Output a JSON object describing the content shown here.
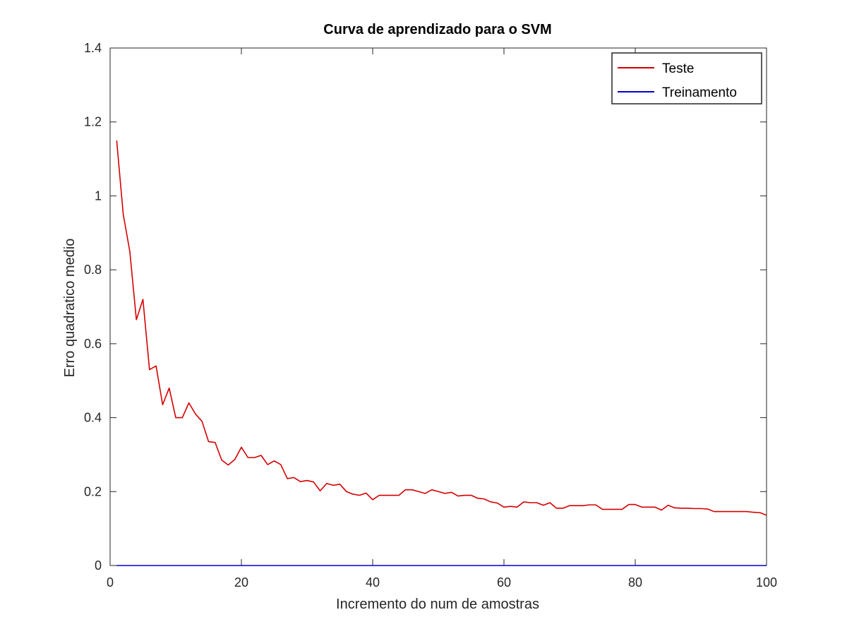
{
  "chart_data": {
    "type": "line",
    "title": "Curva de aprendizado para o SVM",
    "xlabel": "Incremento do num de amostras",
    "ylabel": "Erro quadratico medio",
    "xlim": [
      0,
      100
    ],
    "ylim": [
      0,
      1.4
    ],
    "xticks": [
      0,
      20,
      40,
      60,
      80,
      100
    ],
    "yticks": [
      0,
      0.2,
      0.4,
      0.6,
      0.8,
      1,
      1.2,
      1.4
    ],
    "xtick_labels": [
      "0",
      "20",
      "40",
      "60",
      "80",
      "100"
    ],
    "ytick_labels": [
      "0",
      "0.2",
      "0.4",
      "0.6",
      "0.8",
      "1",
      "1.2",
      "1.4"
    ],
    "grid": false,
    "legend_position": "top-right",
    "x": [
      1,
      2,
      3,
      4,
      5,
      6,
      7,
      8,
      9,
      10,
      11,
      12,
      13,
      14,
      15,
      16,
      17,
      18,
      19,
      20,
      21,
      22,
      23,
      24,
      25,
      26,
      27,
      28,
      29,
      30,
      31,
      32,
      33,
      34,
      35,
      36,
      37,
      38,
      39,
      40,
      41,
      42,
      43,
      44,
      45,
      46,
      47,
      48,
      49,
      50,
      51,
      52,
      53,
      54,
      55,
      56,
      57,
      58,
      59,
      60,
      61,
      62,
      63,
      64,
      65,
      66,
      67,
      68,
      69,
      70,
      71,
      72,
      73,
      74,
      75,
      76,
      77,
      78,
      79,
      80,
      81,
      82,
      83,
      84,
      85,
      86,
      87,
      88,
      89,
      90,
      91,
      92,
      93,
      94,
      95,
      96,
      97,
      98,
      99,
      100
    ],
    "series": [
      {
        "name": "Teste",
        "color": "#d40000",
        "values": [
          1.15,
          0.95,
          0.85,
          0.665,
          0.72,
          0.53,
          0.54,
          0.435,
          0.48,
          0.4,
          0.4,
          0.44,
          0.41,
          0.39,
          0.335,
          0.333,
          0.285,
          0.272,
          0.287,
          0.32,
          0.292,
          0.292,
          0.298,
          0.273,
          0.283,
          0.273,
          0.235,
          0.238,
          0.227,
          0.23,
          0.226,
          0.202,
          0.222,
          0.217,
          0.22,
          0.2,
          0.193,
          0.19,
          0.196,
          0.178,
          0.19,
          0.19,
          0.19,
          0.19,
          0.205,
          0.205,
          0.2,
          0.195,
          0.205,
          0.2,
          0.195,
          0.198,
          0.188,
          0.19,
          0.19,
          0.182,
          0.18,
          0.172,
          0.169,
          0.158,
          0.16,
          0.158,
          0.172,
          0.17,
          0.17,
          0.163,
          0.17,
          0.155,
          0.155,
          0.162,
          0.162,
          0.162,
          0.164,
          0.164,
          0.152,
          0.152,
          0.152,
          0.152,
          0.165,
          0.165,
          0.158,
          0.158,
          0.158,
          0.15,
          0.163,
          0.156,
          0.155,
          0.155,
          0.154,
          0.154,
          0.153,
          0.146,
          0.146,
          0.146,
          0.146,
          0.146,
          0.146,
          0.144,
          0.143,
          0.136
        ]
      },
      {
        "name": "Treinamento",
        "color": "#0000cc",
        "values": [
          0,
          0,
          0,
          0,
          0,
          0,
          0,
          0,
          0,
          0,
          0,
          0,
          0,
          0,
          0,
          0,
          0,
          0,
          0,
          0,
          0,
          0,
          0,
          0,
          0,
          0,
          0,
          0,
          0,
          0,
          0,
          0,
          0,
          0,
          0,
          0,
          0,
          0,
          0,
          0,
          0,
          0,
          0,
          0,
          0,
          0,
          0,
          0,
          0,
          0,
          0,
          0,
          0,
          0,
          0,
          0,
          0,
          0,
          0,
          0,
          0,
          0,
          0,
          0,
          0,
          0,
          0,
          0,
          0,
          0,
          0,
          0,
          0,
          0,
          0,
          0,
          0,
          0,
          0,
          0,
          0,
          0,
          0,
          0,
          0,
          0,
          0,
          0,
          0,
          0,
          0,
          0,
          0,
          0,
          0,
          0,
          0,
          0,
          0,
          0
        ]
      }
    ]
  }
}
